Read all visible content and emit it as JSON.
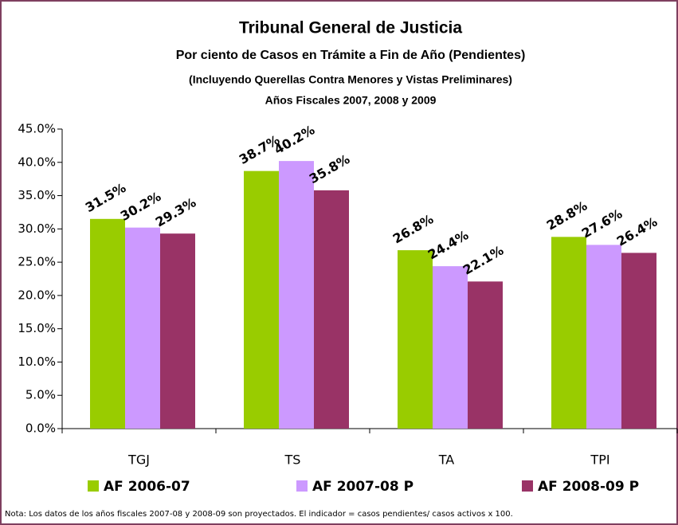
{
  "chart_data": {
    "type": "bar",
    "title": "Tribunal General de Justicia",
    "subtitles": [
      "Por ciento de Casos en Trámite a Fin de Año (Pendientes)",
      "(Incluyendo Querellas Contra Menores y Vistas Preliminares)",
      "Años Fiscales 2007, 2008 y 2009"
    ],
    "categories": [
      "TGJ",
      "TS",
      "TA",
      "TPI"
    ],
    "series": [
      {
        "name": "AF 2006-07",
        "color": "#99cc00",
        "values": [
          31.5,
          38.7,
          26.8,
          28.8
        ],
        "value_labels": [
          "31.5%",
          "38.7%",
          "26.8%",
          "28.8%"
        ]
      },
      {
        "name": "AF 2007-08 P",
        "color": "#cc99ff",
        "values": [
          30.2,
          40.2,
          24.4,
          27.6
        ],
        "value_labels": [
          "30.2%",
          "40.2%",
          "24.4%",
          "27.6%"
        ]
      },
      {
        "name": "AF 2008-09 P",
        "color": "#993366",
        "values": [
          29.3,
          35.8,
          22.1,
          26.4
        ],
        "value_labels": [
          "29.3%",
          "35.8%",
          "22.1%",
          "26.4%"
        ]
      }
    ],
    "ylim": [
      0,
      45
    ],
    "yticks": [
      {
        "value": 0,
        "label": "0.0%"
      },
      {
        "value": 5,
        "label": "5.0%"
      },
      {
        "value": 10,
        "label": "10.0%"
      },
      {
        "value": 15,
        "label": "15.0%"
      },
      {
        "value": 20,
        "label": "20.0%"
      },
      {
        "value": 25,
        "label": "25.0%"
      },
      {
        "value": 30,
        "label": "30.0%"
      },
      {
        "value": 35,
        "label": "35.0%"
      },
      {
        "value": 40,
        "label": "40.0%"
      },
      {
        "value": 45,
        "label": "45.0%"
      }
    ],
    "grid": false,
    "note": "Nota: Los datos de los años fiscales 2007-08 y 2008-09 son proyectados.   El indicador = casos pendientes/ casos activos x 100."
  }
}
